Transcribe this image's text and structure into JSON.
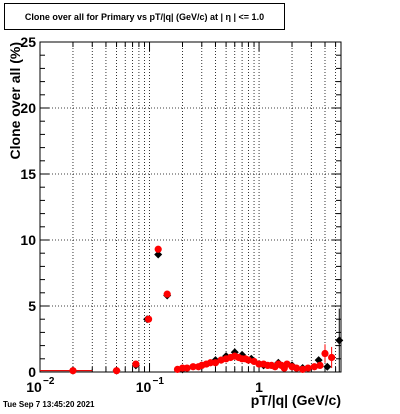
{
  "title": "Clone  over all for Primary vs pT/|q| (GeV/c) at |  η  | <= 1.0",
  "timestamp": "Tue Sep  7 13:45:20 2021",
  "chart_data": {
    "type": "scatter",
    "title": "Clone  over all for Primary vs pT/|q| (GeV/c) at |  η  | <= 1.0",
    "xlabel": "pT/|q| (GeV/c)",
    "ylabel": "Clone  over all (%)",
    "xscale": "log",
    "xlim": [
      0.01,
      5.6
    ],
    "ylim": [
      0,
      25
    ],
    "grid": true,
    "x_ticks": [
      {
        "label": "10",
        "exp": "−2",
        "value": 0.01
      },
      {
        "label": "10",
        "exp": "−1",
        "value": 0.1
      },
      {
        "label": "1",
        "exp": "",
        "value": 1
      }
    ],
    "y_ticks": [
      {
        "label": "0",
        "value": 0
      },
      {
        "label": "5",
        "value": 5
      },
      {
        "label": "10",
        "value": 10
      },
      {
        "label": "15",
        "value": 15
      },
      {
        "label": "20",
        "value": 20
      },
      {
        "label": "25",
        "value": 25
      }
    ],
    "series": [
      {
        "color": "#000000",
        "marker": "diamond",
        "points": [
          {
            "x": 0.02,
            "y": 0.1,
            "xerr": 0.01
          },
          {
            "x": 0.05,
            "y": 0.1
          },
          {
            "x": 0.075,
            "y": 0.5
          },
          {
            "x": 0.095,
            "y": 4.0
          },
          {
            "x": 0.12,
            "y": 8.9
          },
          {
            "x": 0.145,
            "y": 5.8
          },
          {
            "x": 0.2,
            "y": 0.2
          },
          {
            "x": 0.3,
            "y": 0.5
          },
          {
            "x": 0.4,
            "y": 0.9
          },
          {
            "x": 0.5,
            "y": 1.2
          },
          {
            "x": 0.6,
            "y": 1.5
          },
          {
            "x": 0.7,
            "y": 1.3
          },
          {
            "x": 0.85,
            "y": 1.0
          },
          {
            "x": 1.1,
            "y": 0.5
          },
          {
            "x": 1.5,
            "y": 0.7
          },
          {
            "x": 2.0,
            "y": 0.5
          },
          {
            "x": 2.5,
            "y": 0.3
          },
          {
            "x": 3.5,
            "y": 0.9
          },
          {
            "x": 4.2,
            "y": 0.4
          },
          {
            "x": 5.4,
            "y": 2.4,
            "yerr": 2.4
          }
        ]
      },
      {
        "color": "#ff0000",
        "marker": "circle",
        "points": [
          {
            "x": 0.02,
            "y": 0.1,
            "xerr": 0.01
          },
          {
            "x": 0.05,
            "y": 0.1
          },
          {
            "x": 0.075,
            "y": 0.6
          },
          {
            "x": 0.098,
            "y": 4.0
          },
          {
            "x": 0.12,
            "y": 9.3
          },
          {
            "x": 0.145,
            "y": 5.9
          },
          {
            "x": 0.18,
            "y": 0.2
          },
          {
            "x": 0.2,
            "y": 0.3
          },
          {
            "x": 0.22,
            "y": 0.3
          },
          {
            "x": 0.25,
            "y": 0.4
          },
          {
            "x": 0.28,
            "y": 0.4
          },
          {
            "x": 0.3,
            "y": 0.5
          },
          {
            "x": 0.33,
            "y": 0.6
          },
          {
            "x": 0.36,
            "y": 0.7
          },
          {
            "x": 0.4,
            "y": 0.7
          },
          {
            "x": 0.45,
            "y": 0.9
          },
          {
            "x": 0.5,
            "y": 1.0
          },
          {
            "x": 0.55,
            "y": 1.1
          },
          {
            "x": 0.6,
            "y": 1.2
          },
          {
            "x": 0.65,
            "y": 1.1
          },
          {
            "x": 0.7,
            "y": 1.0
          },
          {
            "x": 0.75,
            "y": 1.0
          },
          {
            "x": 0.8,
            "y": 0.9
          },
          {
            "x": 0.9,
            "y": 0.8
          },
          {
            "x": 1.0,
            "y": 0.6
          },
          {
            "x": 1.1,
            "y": 0.6
          },
          {
            "x": 1.2,
            "y": 0.5
          },
          {
            "x": 1.3,
            "y": 0.5
          },
          {
            "x": 1.4,
            "y": 0.4
          },
          {
            "x": 1.5,
            "y": 0.6
          },
          {
            "x": 1.6,
            "y": 0.5
          },
          {
            "x": 1.7,
            "y": 0.3
          },
          {
            "x": 1.8,
            "y": 0.6
          },
          {
            "x": 2.0,
            "y": 0.4
          },
          {
            "x": 2.2,
            "y": 0.3
          },
          {
            "x": 2.5,
            "y": 0.2
          },
          {
            "x": 2.8,
            "y": 0.3
          },
          {
            "x": 3.2,
            "y": 0.4
          },
          {
            "x": 3.6,
            "y": 0.5
          },
          {
            "x": 4.0,
            "y": 1.4,
            "yerr": 0.7
          },
          {
            "x": 4.6,
            "y": 1.1,
            "yerr": 0.8
          }
        ]
      }
    ]
  }
}
